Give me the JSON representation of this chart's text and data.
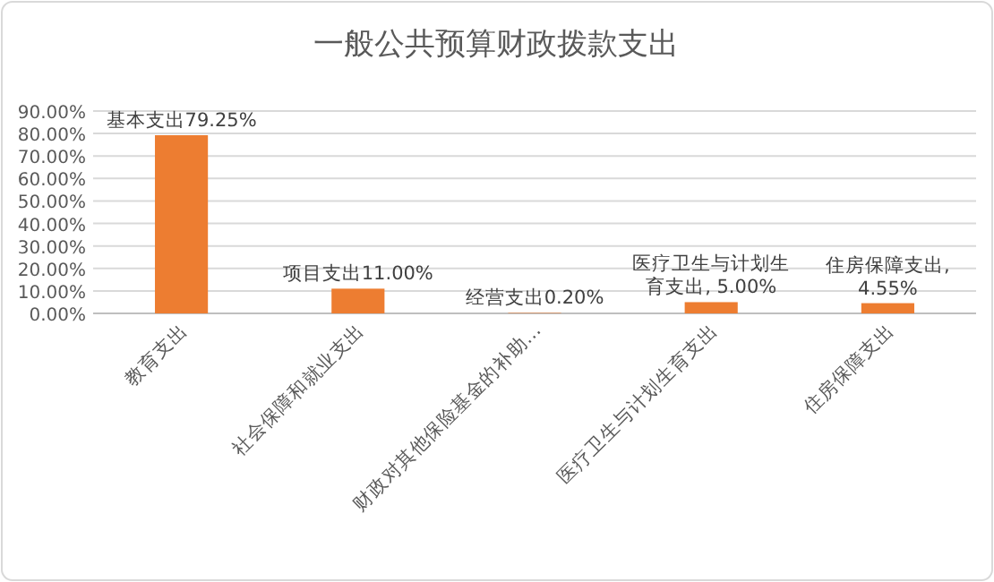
{
  "chart_data": {
    "type": "bar",
    "title": "一般公共预算财政拨款支出",
    "categories": [
      "教育支出",
      "社会保障和就业支出",
      "财政对其他保险基金的补助…",
      "医疗卫生与计划生育支出",
      "住房保障支出"
    ],
    "values": [
      79.25,
      11.0,
      0.2,
      5.0,
      4.55
    ],
    "value_labels": [
      "基本支出79.25%",
      "项目支出11.00%",
      "经营支出0.20%",
      "医疗卫生与计划生育支出, 5.00%",
      "住房保障支出, 4.55%"
    ],
    "color": "#ed7d31",
    "ylim": [
      0,
      90
    ],
    "yticks": [
      {
        "value": 0,
        "label": "0.00%"
      },
      {
        "value": 10,
        "label": "10.00%"
      },
      {
        "value": 20,
        "label": "20.00%"
      },
      {
        "value": 30,
        "label": "30.00%"
      },
      {
        "value": 40,
        "label": "40.00%"
      },
      {
        "value": 50,
        "label": "50.00%"
      },
      {
        "value": 60,
        "label": "60.00%"
      },
      {
        "value": 70,
        "label": "70.00%"
      },
      {
        "value": 80,
        "label": "80.00%"
      },
      {
        "value": 90,
        "label": "90.00%"
      }
    ],
    "grid": "y"
  }
}
